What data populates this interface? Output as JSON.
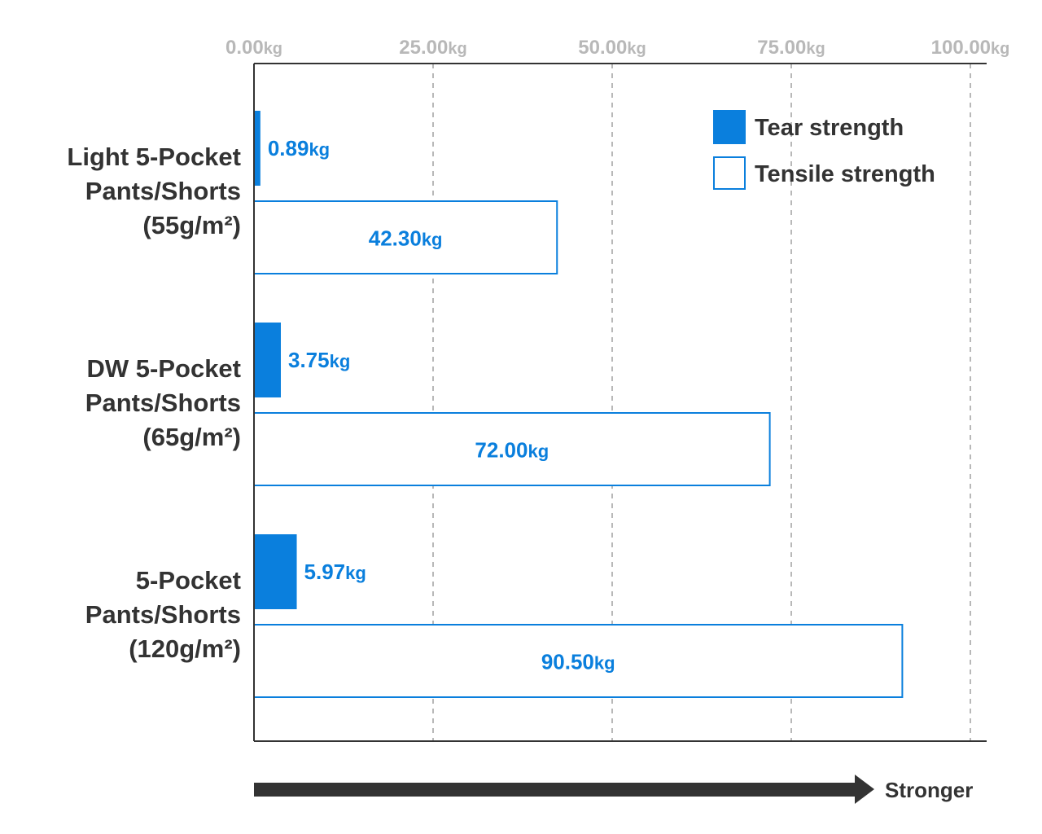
{
  "chart_data": {
    "type": "bar",
    "orientation": "horizontal",
    "categories": [
      [
        "Light 5-Pocket",
        "Pants/Shorts",
        "(55g/m²)"
      ],
      [
        "DW 5-Pocket",
        "Pants/Shorts",
        "(65g/m²)"
      ],
      [
        "5-Pocket",
        "Pants/Shorts",
        "(120g/m²)"
      ]
    ],
    "series": [
      {
        "name": "Tear strength",
        "style": "filled",
        "values": [
          0.89,
          3.75,
          5.97
        ],
        "labels": [
          "0.89",
          "3.75",
          "5.97"
        ]
      },
      {
        "name": "Tensile strength",
        "style": "outline",
        "values": [
          42.3,
          72.0,
          90.5
        ],
        "labels": [
          "42.30",
          "72.00",
          "90.50"
        ]
      }
    ],
    "value_unit": "kg",
    "xlim": [
      0,
      100
    ],
    "ticks": [
      0,
      25,
      50,
      75,
      100
    ],
    "tick_labels": [
      "0.00",
      "25.00",
      "50.00",
      "75.00",
      "100.00"
    ],
    "tick_position": "top",
    "grid": "vertical-dashed",
    "legend_position": "top-right",
    "arrow_label": "Stronger",
    "colors": {
      "accent": "#0a7fdd",
      "axis": "#333333",
      "grid": "#b8b8b8",
      "tick_text": "#b8b8b8",
      "arrow": "#333333"
    }
  }
}
